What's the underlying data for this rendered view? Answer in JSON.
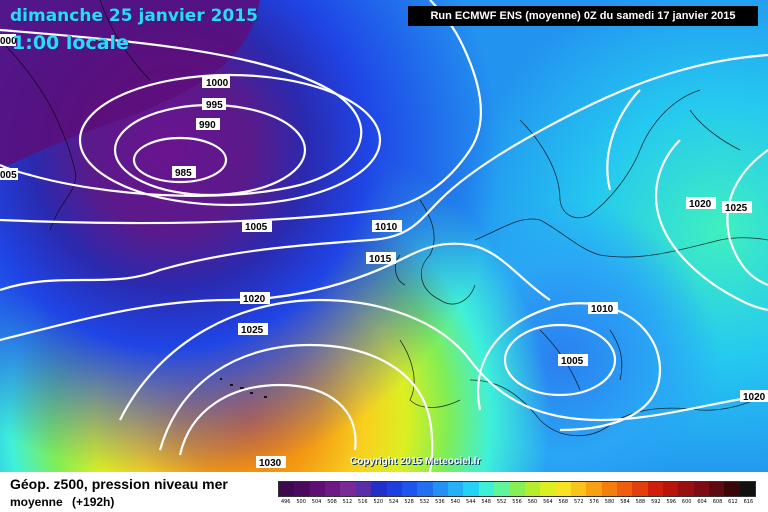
{
  "header": {
    "date": "dimanche 25 janvier 2015",
    "time": "1:00 locale",
    "run": "Run ECMWF ENS (moyenne) 0Z du samedi 17 janvier 2015"
  },
  "copyright": "Copyright 2015 Meteociel.fr",
  "footer": {
    "title": "Géop. z500, pression niveau mer",
    "product": "moyenne",
    "lead": "(+192h)"
  },
  "isobar_labels": [
    "1000",
    "995",
    "990",
    "985",
    "1005",
    "1010",
    "1015",
    "1020",
    "1025",
    "1030",
    "1010",
    "1005",
    "1020",
    "1025",
    "1020",
    "005",
    "000"
  ],
  "legend": {
    "values": [
      "496",
      "500",
      "504",
      "508",
      "512",
      "516",
      "520",
      "524",
      "528",
      "532",
      "536",
      "540",
      "544",
      "548",
      "552",
      "556",
      "560",
      "564",
      "568",
      "572",
      "576",
      "580",
      "584",
      "588",
      "592",
      "596",
      "600",
      "604",
      "608",
      "612",
      "616"
    ],
    "colors": [
      "#3d0a4d",
      "#4b0a5f",
      "#5e0f73",
      "#6d1a85",
      "#7a2a96",
      "#5a2ea8",
      "#2030c8",
      "#1e3fe0",
      "#1f55ef",
      "#2070f0",
      "#2290f5",
      "#25b1f7",
      "#25d2f3",
      "#3ff0d9",
      "#5ff59a",
      "#87ef55",
      "#b5ec2d",
      "#dcef22",
      "#f7e321",
      "#f9c31b",
      "#f8a012",
      "#f37e0e",
      "#ee5e0d",
      "#e33f0c",
      "#d11e0a",
      "#b8140c",
      "#9a0f10",
      "#7e0c12",
      "#5e0a10",
      "#3a0608",
      "#111111"
    ]
  }
}
